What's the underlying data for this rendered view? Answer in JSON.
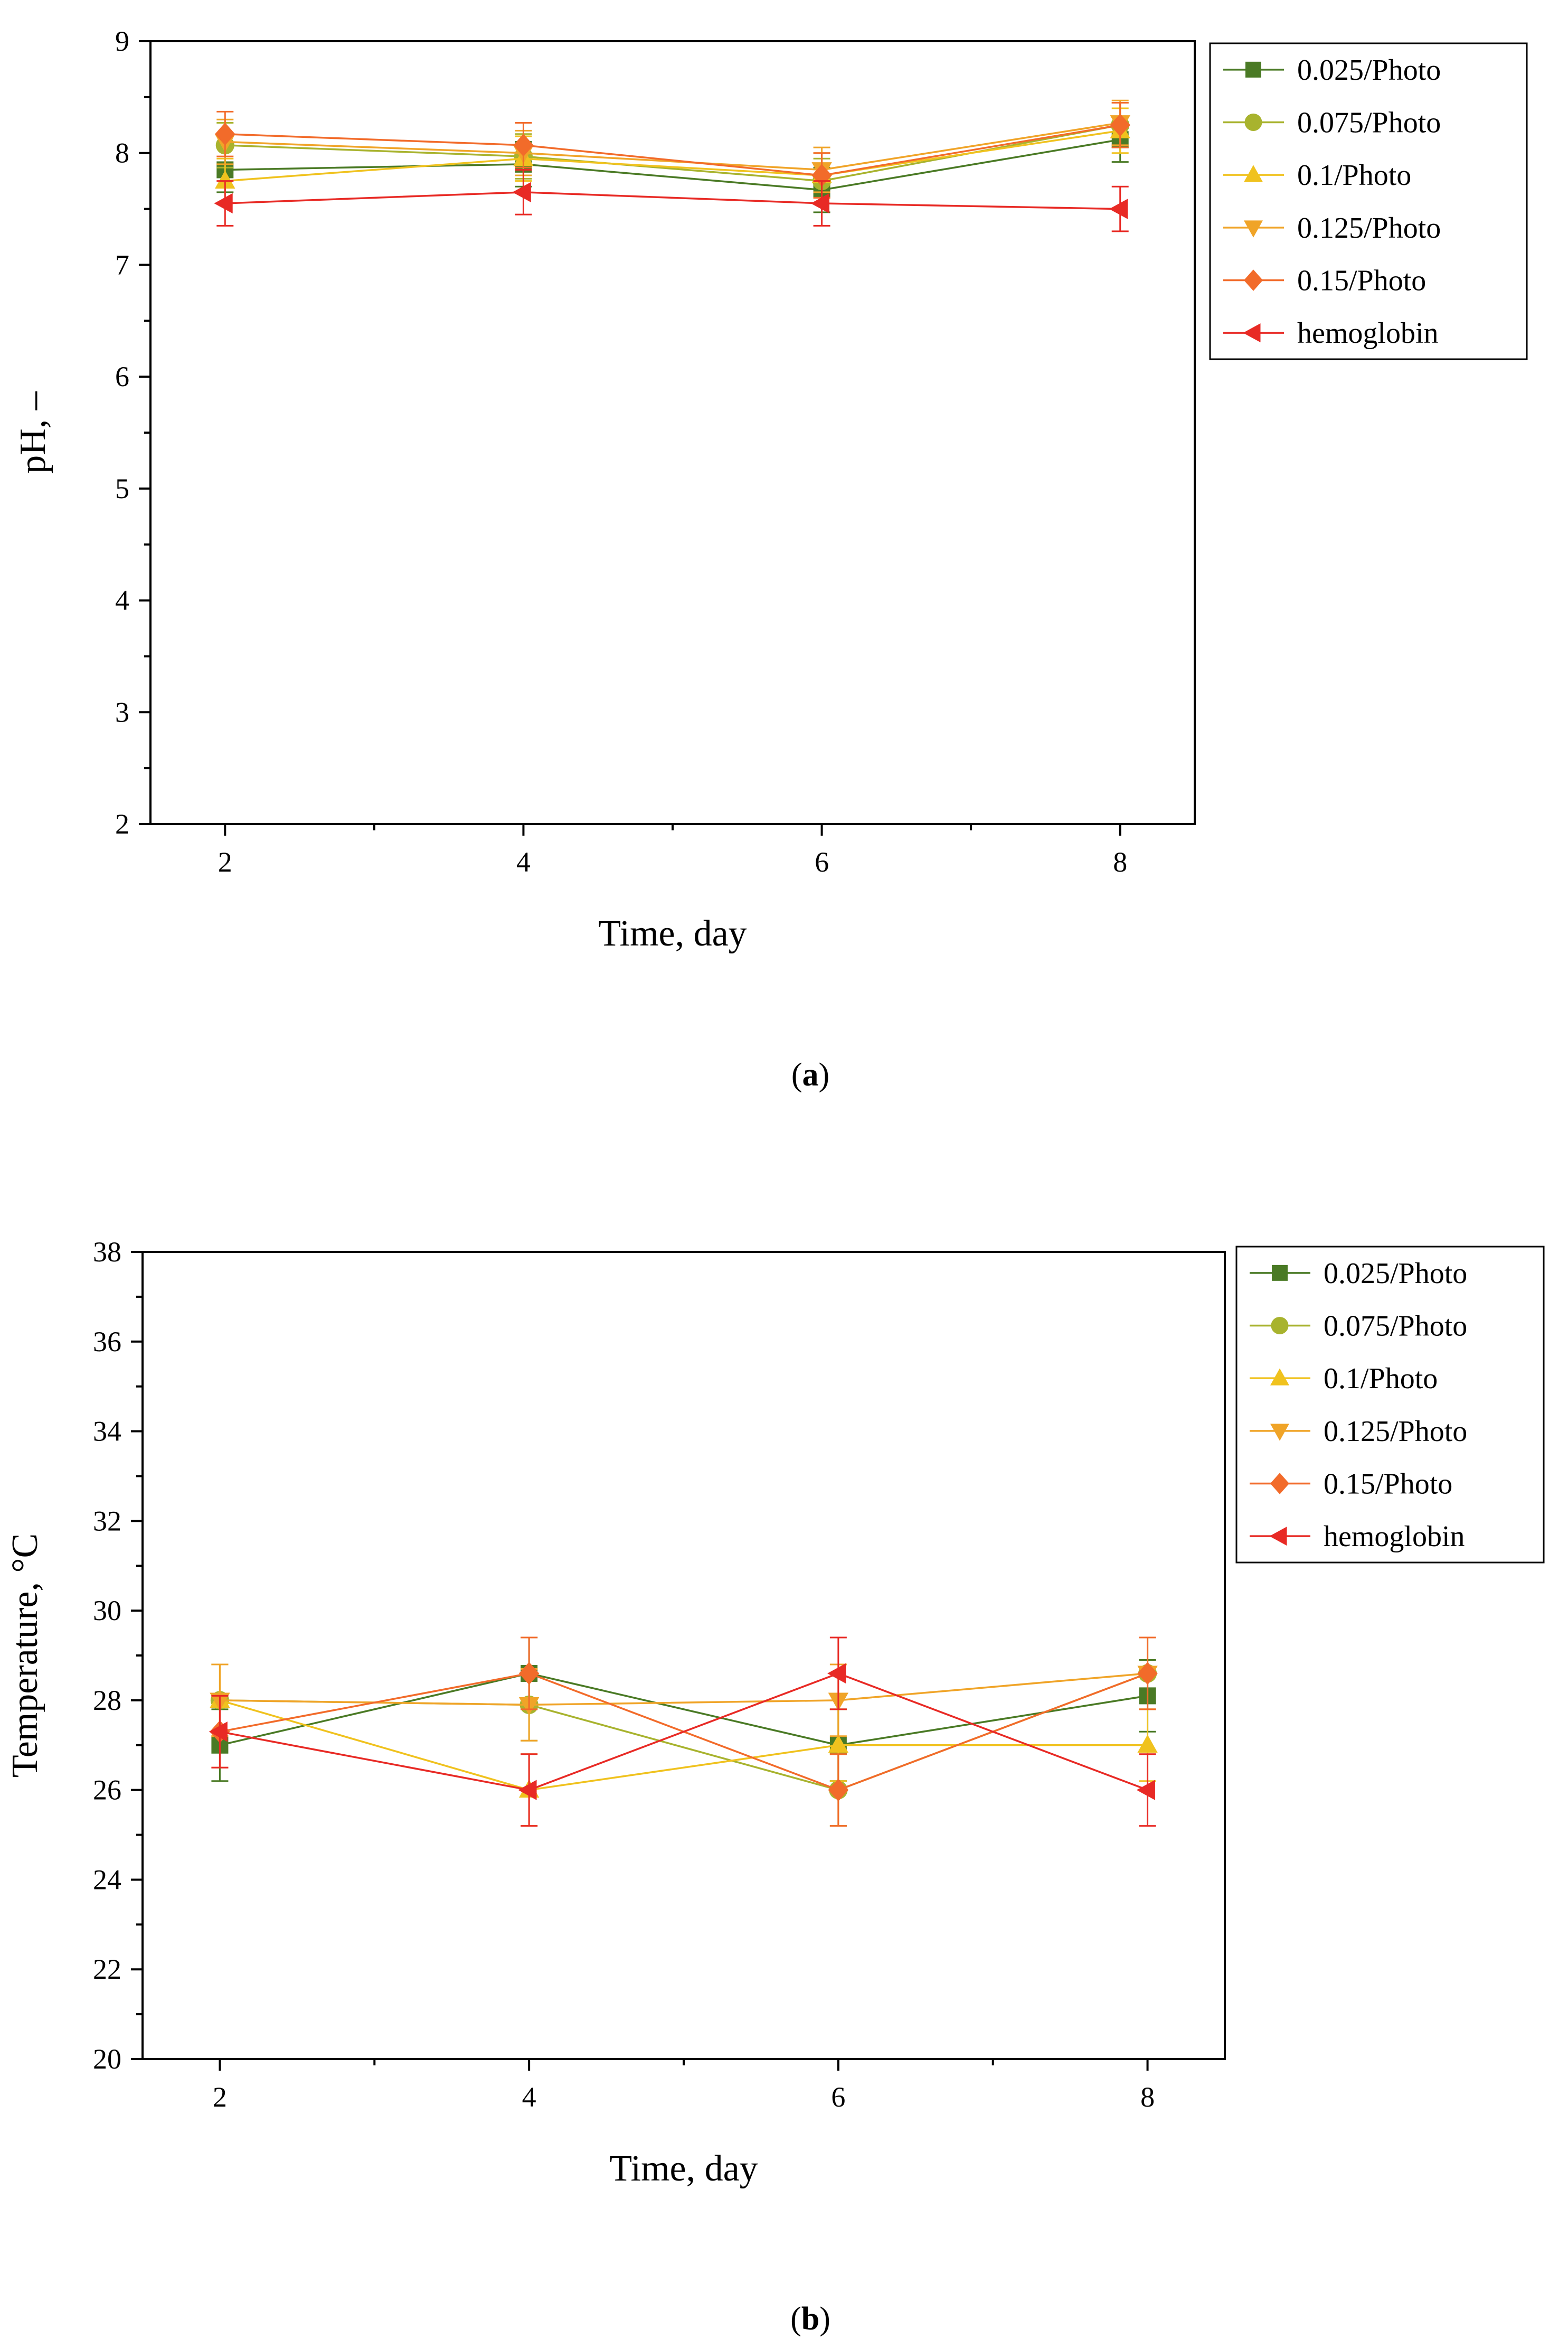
{
  "figure": {
    "caption_a": "a",
    "caption_b": "b"
  },
  "chart_data": [
    {
      "id": "a",
      "type": "line",
      "title": "",
      "xlabel": "Time, day",
      "ylabel": "pH, –",
      "xlim": [
        1.5,
        8.5
      ],
      "ylim": [
        2,
        9
      ],
      "xticks": [
        2,
        4,
        6,
        8
      ],
      "yticks": [
        2,
        3,
        4,
        5,
        6,
        7,
        8,
        9
      ],
      "grid": false,
      "legend_position": "outside-top-right",
      "series": [
        {
          "name": "0.025/Photo",
          "color": "#4a7a25",
          "marker": "square",
          "x": [
            2,
            4,
            6,
            8
          ],
          "y": [
            7.85,
            7.9,
            7.67,
            8.12
          ],
          "err": [
            0.2,
            0.2,
            0.2,
            0.2
          ]
        },
        {
          "name": "0.075/Photo",
          "color": "#a8b32e",
          "marker": "circle",
          "x": [
            2,
            4,
            6,
            8
          ],
          "y": [
            8.07,
            7.97,
            7.75,
            8.25
          ],
          "err": [
            0.2,
            0.2,
            0.2,
            0.2
          ]
        },
        {
          "name": "0.1/Photo",
          "color": "#f0c21e",
          "marker": "triangle-up",
          "x": [
            2,
            4,
            6,
            8
          ],
          "y": [
            7.75,
            7.95,
            7.8,
            8.2
          ],
          "err": [
            0.2,
            0.2,
            0.2,
            0.2
          ]
        },
        {
          "name": "0.125/Photo",
          "color": "#f0a428",
          "marker": "triangle-down",
          "x": [
            2,
            4,
            6,
            8
          ],
          "y": [
            8.1,
            8.0,
            7.85,
            8.27
          ],
          "err": [
            0.2,
            0.2,
            0.2,
            0.2
          ]
        },
        {
          "name": "0.15/Photo",
          "color": "#f26b2a",
          "marker": "diamond",
          "x": [
            2,
            4,
            6,
            8
          ],
          "y": [
            8.17,
            8.07,
            7.8,
            8.25
          ],
          "err": [
            0.2,
            0.2,
            0.2,
            0.2
          ]
        },
        {
          "name": "hemoglobin",
          "color": "#e82a25",
          "marker": "triangle-left",
          "x": [
            2,
            4,
            6,
            8
          ],
          "y": [
            7.55,
            7.65,
            7.55,
            7.5
          ],
          "err": [
            0.2,
            0.2,
            0.2,
            0.2
          ]
        }
      ]
    },
    {
      "id": "b",
      "type": "line",
      "title": "",
      "xlabel": "Time, day",
      "ylabel": "Temperature, °C",
      "xlim": [
        1.5,
        8.5
      ],
      "ylim": [
        20,
        38
      ],
      "xticks": [
        2,
        4,
        6,
        8
      ],
      "yticks": [
        20,
        22,
        24,
        26,
        28,
        30,
        32,
        34,
        36,
        38
      ],
      "grid": false,
      "legend_position": "outside-top-right",
      "series": [
        {
          "name": "0.025/Photo",
          "color": "#4a7a25",
          "marker": "square",
          "x": [
            2,
            4,
            6,
            8
          ],
          "y": [
            27.0,
            28.6,
            27.0,
            28.1
          ],
          "err": [
            0.8,
            0.8,
            0.8,
            0.8
          ]
        },
        {
          "name": "0.075/Photo",
          "color": "#a8b32e",
          "marker": "circle",
          "x": [
            2,
            4,
            6,
            8
          ],
          "y": [
            28.0,
            27.9,
            26.0,
            28.6
          ],
          "err": [
            0.8,
            0.8,
            0.8,
            0.8
          ]
        },
        {
          "name": "0.1/Photo",
          "color": "#f0c21e",
          "marker": "triangle-up",
          "x": [
            2,
            4,
            6,
            8
          ],
          "y": [
            28.0,
            26.0,
            27.0,
            27.0
          ],
          "err": [
            0.8,
            0.8,
            0.8,
            0.8
          ]
        },
        {
          "name": "0.125/Photo",
          "color": "#f0a428",
          "marker": "triangle-down",
          "x": [
            2,
            4,
            6,
            8
          ],
          "y": [
            28.0,
            27.9,
            28.0,
            28.6
          ],
          "err": [
            0.8,
            0.8,
            0.8,
            0.8
          ]
        },
        {
          "name": "0.15/Photo",
          "color": "#f26b2a",
          "marker": "diamond",
          "x": [
            2,
            4,
            6,
            8
          ],
          "y": [
            27.3,
            28.6,
            26.0,
            28.6
          ],
          "err": [
            0.8,
            0.8,
            0.8,
            0.8
          ]
        },
        {
          "name": "hemoglobin",
          "color": "#e82a25",
          "marker": "triangle-left",
          "x": [
            2,
            4,
            6,
            8
          ],
          "y": [
            27.3,
            26.0,
            28.6,
            26.0
          ],
          "err": [
            0.8,
            0.8,
            0.8,
            0.8
          ]
        }
      ]
    }
  ]
}
